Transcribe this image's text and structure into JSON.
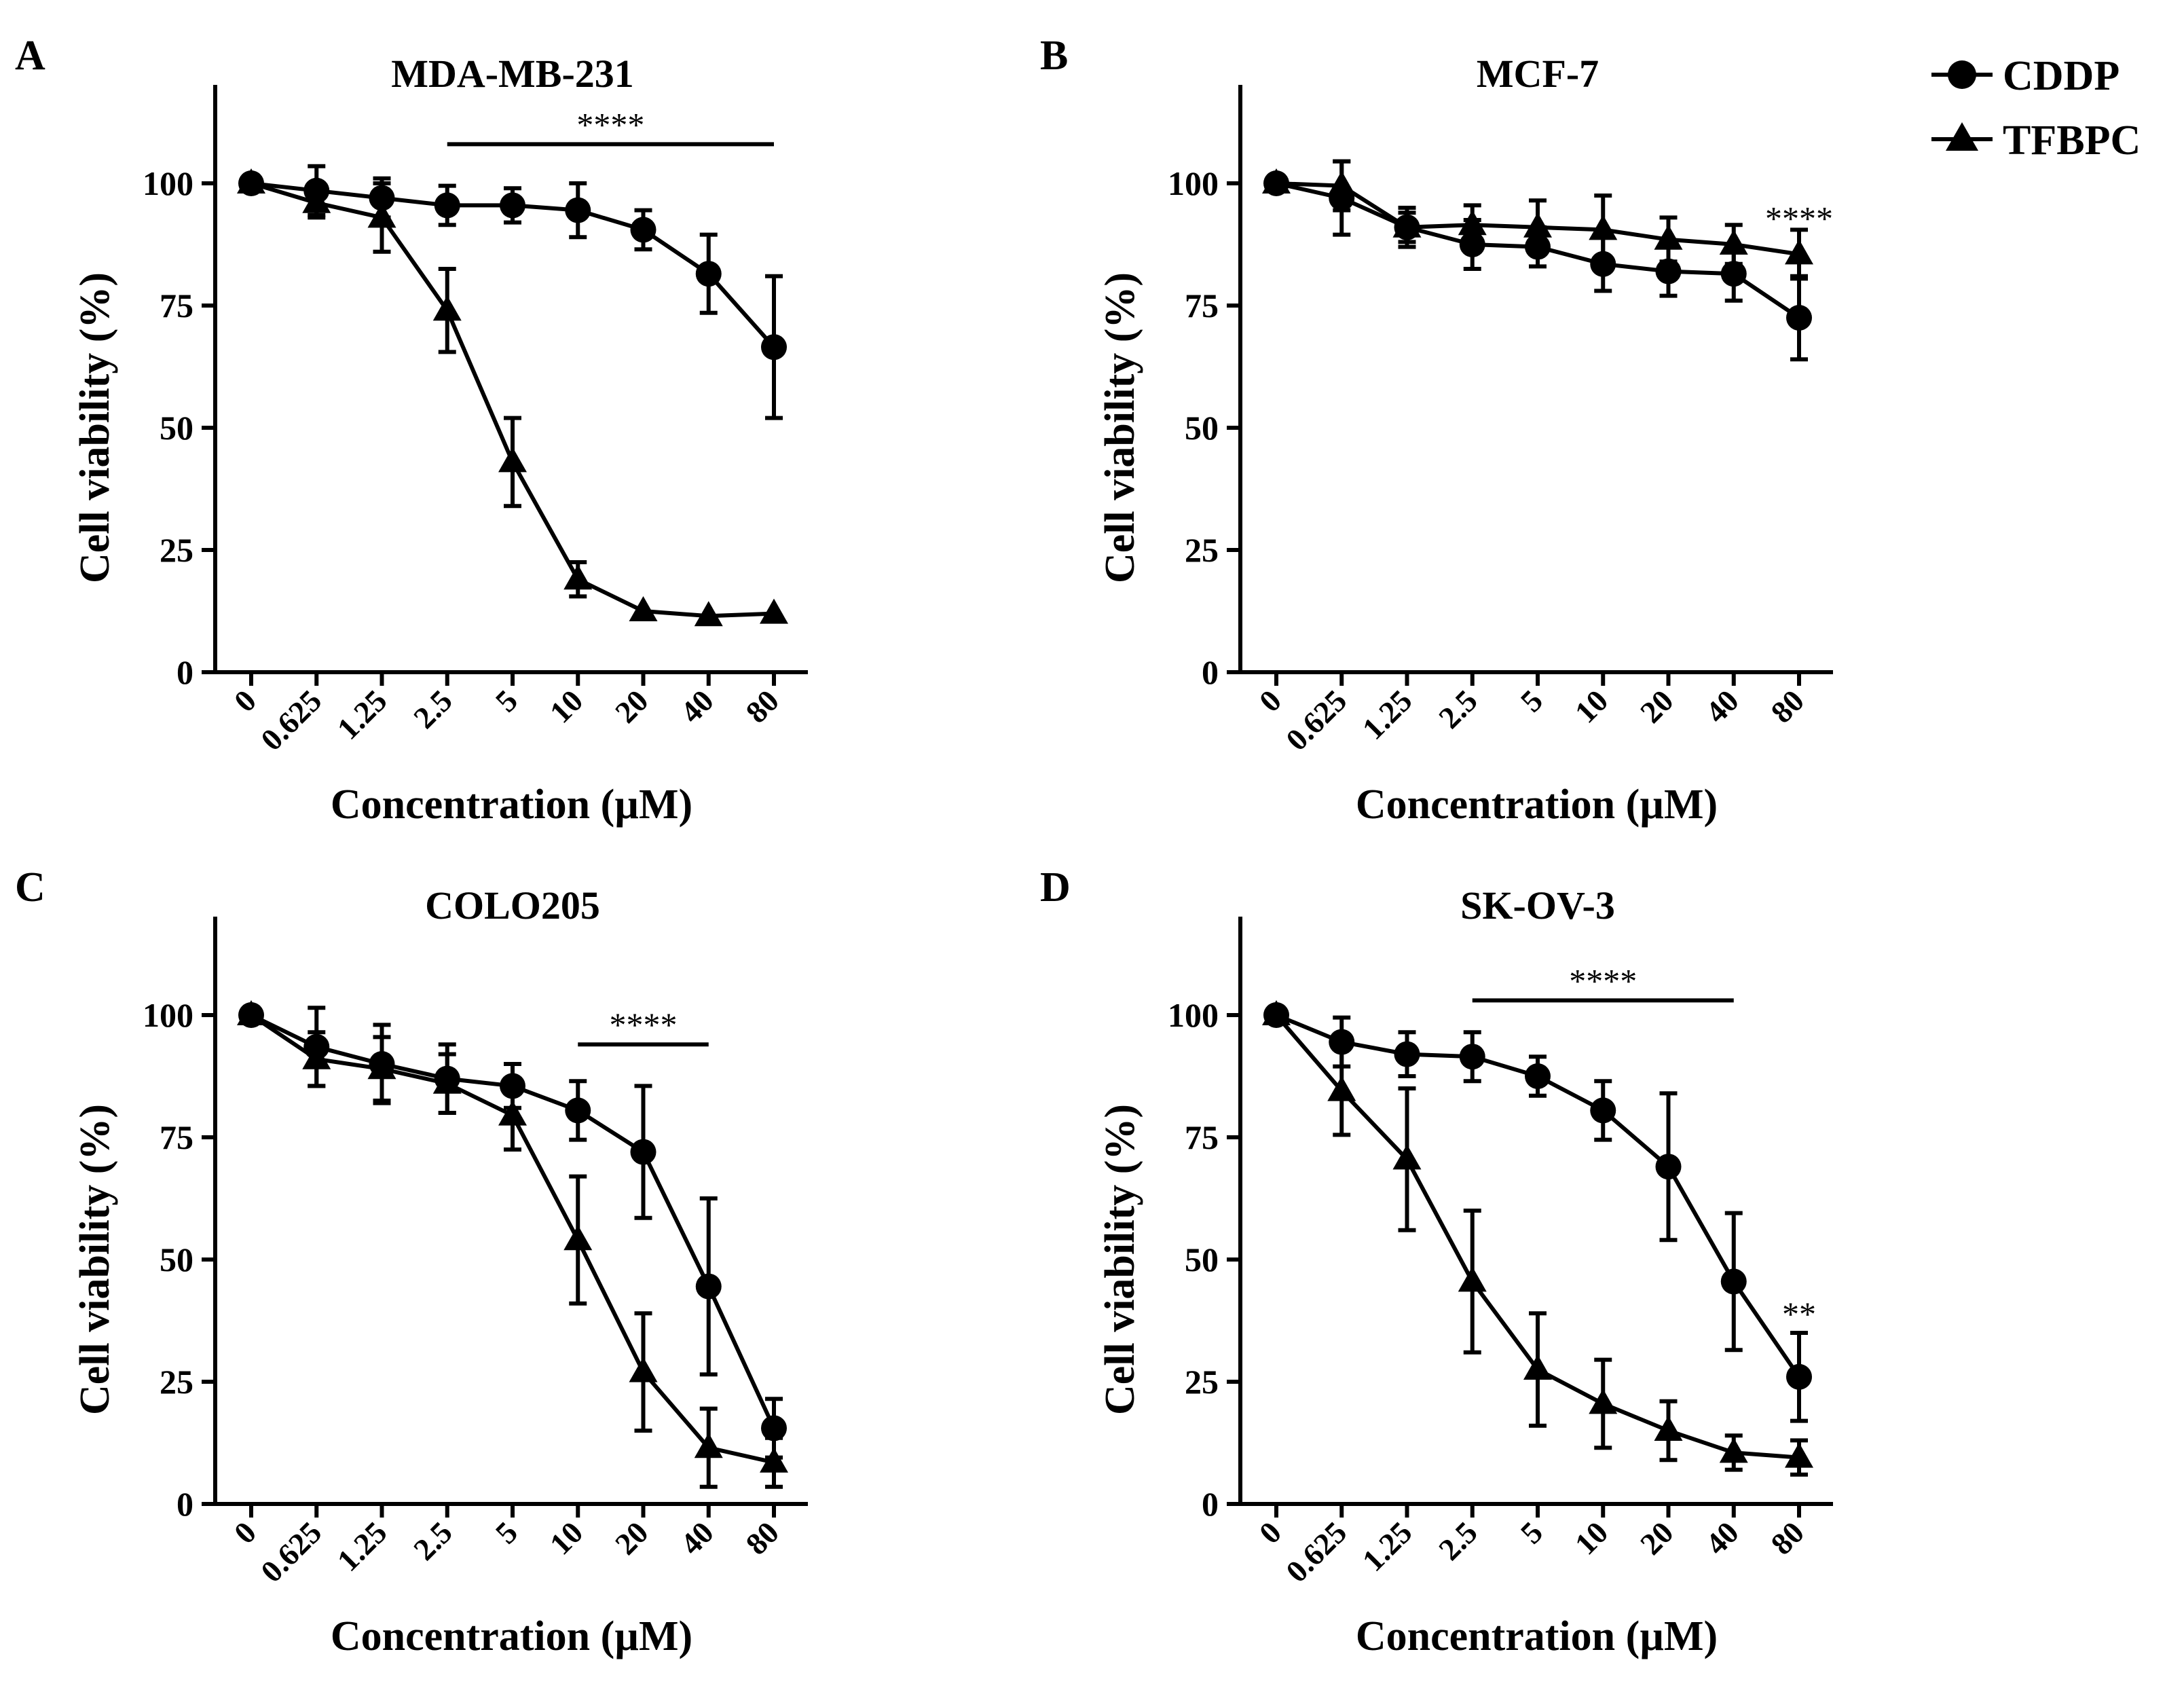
{
  "chart_data": [
    {
      "type": "line",
      "panel": "A",
      "title": "MDA-MB-231",
      "xlabel": "Concentration (µM)",
      "ylabel": "Cell viability (%)",
      "categories": [
        "0",
        "0.625",
        "1.25",
        "2.5",
        "5",
        "10",
        "20",
        "40",
        "80"
      ],
      "yticks": [
        "0",
        "25",
        "50",
        "75",
        "100"
      ],
      "ylim": [
        0,
        120
      ],
      "series": [
        {
          "name": "CDDP",
          "marker": "circle",
          "values": [
            100,
            98.5,
            97,
            95.5,
            95.5,
            94.5,
            90.5,
            81.5,
            66.5
          ],
          "errors": [
            1,
            5,
            4,
            4,
            3.5,
            5.5,
            4,
            8,
            14.5
          ]
        },
        {
          "name": "TFBPC",
          "marker": "triangle",
          "values": [
            100,
            96,
            93,
            74,
            43,
            19,
            12.5,
            11.5,
            12
          ],
          "errors": [
            1,
            3,
            7,
            8.5,
            9,
            3.5,
            1,
            1,
            1
          ]
        }
      ],
      "significance": [
        {
          "label": "****",
          "from_index": 3,
          "to_index": 8,
          "y": 108,
          "bar": true
        }
      ]
    },
    {
      "type": "line",
      "panel": "B",
      "title": "MCF-7",
      "xlabel": "Concentration (µM)",
      "ylabel": "Cell viability (%)",
      "categories": [
        "0",
        "0.625",
        "1.25",
        "2.5",
        "5",
        "10",
        "20",
        "40",
        "80"
      ],
      "yticks": [
        "0",
        "25",
        "50",
        "75",
        "100"
      ],
      "ylim": [
        0,
        120
      ],
      "series": [
        {
          "name": "CDDP",
          "marker": "circle",
          "values": [
            100,
            97,
            91,
            87.5,
            87,
            83.5,
            82,
            81.5,
            72.5
          ],
          "errors": [
            1,
            7.5,
            4,
            5,
            4,
            5.5,
            5,
            5.5,
            8.5
          ]
        },
        {
          "name": "TFBPC",
          "marker": "triangle",
          "values": [
            100,
            99.5,
            91,
            91.5,
            91,
            90.5,
            88.5,
            87.5,
            85.5
          ],
          "errors": [
            1,
            5,
            3,
            4,
            5.5,
            7,
            4.5,
            4,
            5
          ]
        }
      ],
      "significance": [
        {
          "label": "****",
          "from_index": 8,
          "to_index": 8,
          "y": 93,
          "bar": false
        }
      ]
    },
    {
      "type": "line",
      "panel": "C",
      "title": "COLO205",
      "xlabel": "Concentration (µM)",
      "ylabel": "Cell viability (%)",
      "categories": [
        "0",
        "0.625",
        "1.25",
        "2.5",
        "5",
        "10",
        "20",
        "40",
        "80"
      ],
      "yticks": [
        "0",
        "25",
        "50",
        "75",
        "100"
      ],
      "ylim": [
        0,
        120
      ],
      "series": [
        {
          "name": "CDDP",
          "marker": "circle",
          "values": [
            100,
            93.5,
            90,
            87,
            85.5,
            80.5,
            72,
            44.5,
            15.5
          ],
          "errors": [
            1,
            8,
            8,
            7,
            4.5,
            6,
            13.5,
            18,
            6
          ]
        },
        {
          "name": "TFBPC",
          "marker": "triangle",
          "values": [
            100,
            91,
            89,
            86,
            79.5,
            54,
            27,
            11.5,
            8.5
          ],
          "errors": [
            1,
            5.5,
            6.5,
            6,
            7,
            13,
            12,
            8,
            5
          ]
        }
      ],
      "significance": [
        {
          "label": "****",
          "from_index": 5,
          "to_index": 7,
          "y": 94,
          "bar": true
        }
      ]
    },
    {
      "type": "line",
      "panel": "D",
      "title": "SK-OV-3",
      "xlabel": "Concentration (µM)",
      "ylabel": "Cell viability (%)",
      "categories": [
        "0",
        "0.625",
        "1.25",
        "2.5",
        "5",
        "10",
        "20",
        "40",
        "80"
      ],
      "yticks": [
        "0",
        "25",
        "50",
        "75",
        "100"
      ],
      "ylim": [
        0,
        120
      ],
      "series": [
        {
          "name": "CDDP",
          "marker": "circle",
          "values": [
            100,
            94.5,
            92,
            91.5,
            87.5,
            80.5,
            69,
            45.5,
            26
          ],
          "errors": [
            1,
            5,
            4.5,
            5,
            4,
            6,
            15,
            14,
            9
          ]
        },
        {
          "name": "TFBPC",
          "marker": "triangle",
          "values": [
            100,
            84.5,
            70.5,
            45.5,
            27.5,
            20.5,
            15,
            10.5,
            9.5
          ],
          "errors": [
            1,
            9,
            14.5,
            14.5,
            11.5,
            9,
            6,
            3.5,
            3.5
          ]
        }
      ],
      "significance": [
        {
          "label": "****",
          "from_index": 3,
          "to_index": 7,
          "y": 103,
          "bar": true
        },
        {
          "label": "**",
          "from_index": 8,
          "to_index": 8,
          "y": 39,
          "bar": false
        }
      ]
    }
  ],
  "legend": [
    {
      "label": "CDDP",
      "marker": "circle"
    },
    {
      "label": "TFBPC",
      "marker": "triangle"
    }
  ]
}
